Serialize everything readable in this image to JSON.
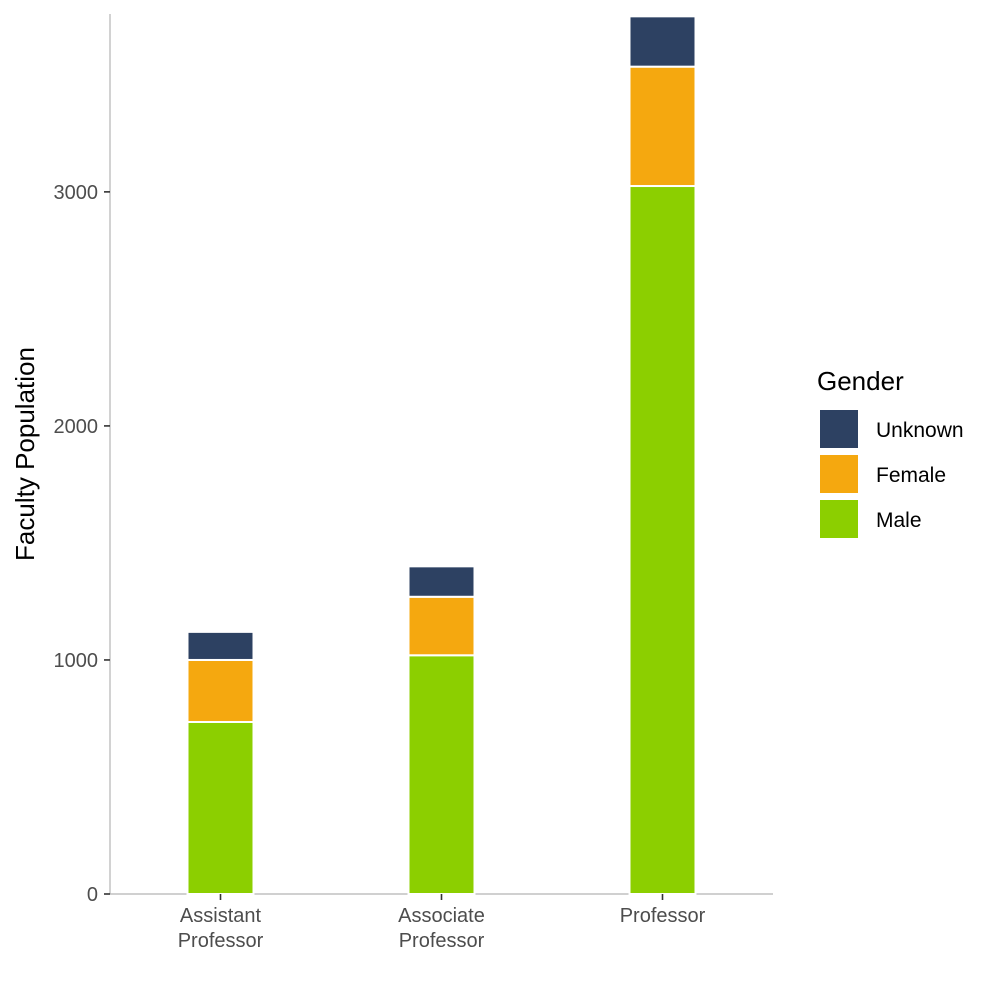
{
  "chart_data": {
    "type": "bar",
    "stacked": true,
    "title": "",
    "xlabel": "",
    "ylabel": "Faculty Population",
    "categories": [
      [
        "Assistant",
        "Professor"
      ],
      [
        "Associate",
        "Professor"
      ],
      [
        "Professor"
      ]
    ],
    "series": [
      {
        "name": "Male",
        "color": "#8CCF00",
        "values": [
          735,
          1020,
          3025
        ]
      },
      {
        "name": "Female",
        "color": "#F5A80F",
        "values": [
          265,
          250,
          510
        ]
      },
      {
        "name": "Unknown",
        "color": "#2D4162",
        "values": [
          120,
          130,
          215
        ]
      }
    ],
    "ylim": [
      0,
      3760
    ],
    "yticks": [
      0,
      1000,
      2000,
      3000
    ],
    "grid": false,
    "legend": {
      "title": "Gender",
      "placement": "right",
      "order": [
        "Unknown",
        "Female",
        "Male"
      ]
    }
  }
}
